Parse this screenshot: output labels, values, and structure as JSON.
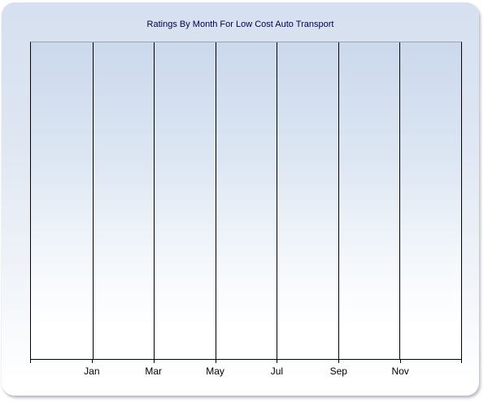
{
  "chart_data": {
    "type": "line",
    "title": "Ratings By Month For Low Cost Auto Transport",
    "categories": [
      "Jan",
      "Mar",
      "May",
      "Jul",
      "Sep",
      "Nov"
    ],
    "series": [],
    "plot_empty": true,
    "x_intervals": 7,
    "x_tick_count": 8,
    "xlabel": "",
    "ylabel": "",
    "y_tick_labels": [],
    "grid": "vertical gridlines only",
    "legend_position": "none",
    "note": "Plot area is empty: axes, vertical gridlines and month tick labels only, no plotted data points"
  },
  "colors": {
    "page_background": "#ffffff",
    "card_gradient_top": "#d6e0f0",
    "card_gradient_bottom": "#ffffff",
    "plot_gradient_top": "#cbd8ec",
    "plot_gradient_bottom": "#ffffff",
    "title_text": "#00004d",
    "axis_label_text": "#000000",
    "gridline": "#000000",
    "axis_line": "#000000",
    "plot_top_border": "#9aa4b4",
    "card_shadow": "#8c929c"
  }
}
